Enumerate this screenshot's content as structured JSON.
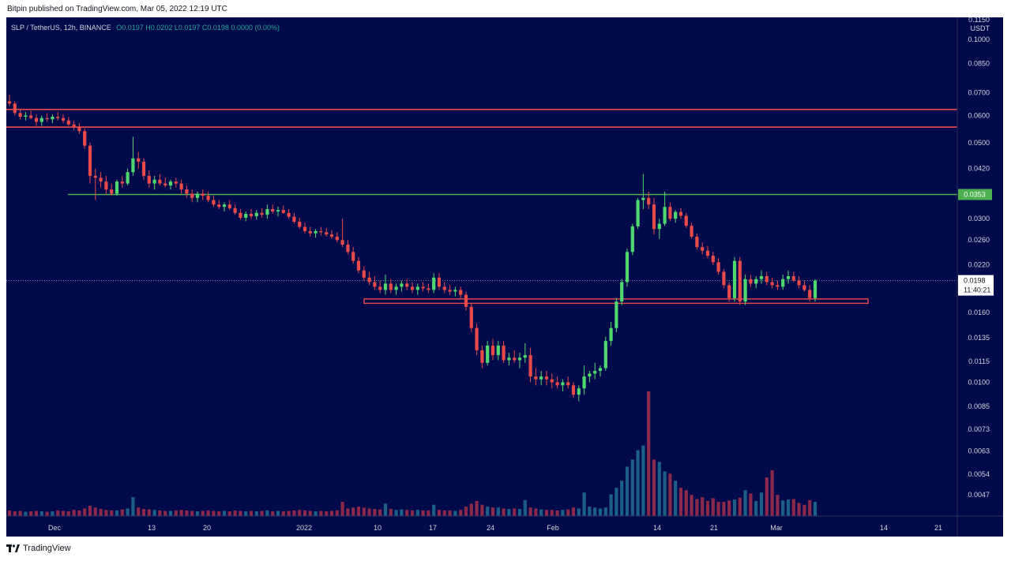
{
  "header": {
    "published_text": "Bitpin published on TradingView.com, Mar 05, 2022 12:19 UTC"
  },
  "legend": {
    "symbol": "SLP / TetherUS, 12h, BINANCE",
    "open": "O0.0197",
    "high": "H0.0202",
    "low": "L0.0197",
    "close": "C0.0198",
    "change": "0.0000 (0.00%)"
  },
  "footer": {
    "brand": "TradingView",
    "logo_icon": "tradingview-logo-icon"
  },
  "colors": {
    "background": "#000a4a",
    "bull": "#4fd870",
    "bear": "#e84a4a",
    "volume_bull": "#1c5f86",
    "volume_bear": "#8a2a4a",
    "resistance": "#e84a4a",
    "support_line": "#4caf50",
    "text": "#d1d4dc"
  },
  "chart_data": {
    "type": "candlestick",
    "price_axis": {
      "currency": "USDT",
      "scale": "log",
      "ticks": [
        "0.1150",
        "0.1000",
        "0.0850",
        "0.0700",
        "0.0600",
        "0.0500",
        "0.0420",
        "0.0300",
        "0.0260",
        "0.0220",
        "0.0160",
        "0.0135",
        "0.0115",
        "0.0100",
        "0.0085",
        "0.0073",
        "0.0063",
        "0.0054",
        "0.0047"
      ]
    },
    "time_axis": {
      "labels": [
        "Dec",
        "13",
        "20",
        "2022",
        "10",
        "17",
        "24",
        "Feb",
        "14",
        "21",
        "Mar",
        "14",
        "21"
      ]
    },
    "current_price": "0.0198",
    "countdown": "11:40:21",
    "marked_level": "0.0353",
    "horizontal_lines": [
      {
        "price": 0.0625,
        "color": "red"
      },
      {
        "price": 0.0555,
        "color": "red"
      },
      {
        "price": 0.0353,
        "color": "green"
      }
    ],
    "support_zone": {
      "from": 0.017,
      "to": 0.0175,
      "color": "red"
    },
    "ohlc": [
      [
        0.066,
        0.069,
        0.064,
        0.065
      ],
      [
        0.065,
        0.066,
        0.06,
        0.061
      ],
      [
        0.061,
        0.0625,
        0.0585,
        0.0595
      ],
      [
        0.0595,
        0.0615,
        0.058,
        0.06
      ],
      [
        0.06,
        0.062,
        0.0585,
        0.059
      ],
      [
        0.059,
        0.0605,
        0.056,
        0.0575
      ],
      [
        0.0575,
        0.06,
        0.056,
        0.059
      ],
      [
        0.059,
        0.061,
        0.0575,
        0.0585
      ],
      [
        0.0585,
        0.0605,
        0.057,
        0.0595
      ],
      [
        0.0595,
        0.0615,
        0.058,
        0.059
      ],
      [
        0.059,
        0.0605,
        0.057,
        0.058
      ],
      [
        0.058,
        0.0595,
        0.056,
        0.0565
      ],
      [
        0.0565,
        0.058,
        0.0545,
        0.0555
      ],
      [
        0.0555,
        0.057,
        0.053,
        0.054
      ],
      [
        0.054,
        0.055,
        0.048,
        0.049
      ],
      [
        0.049,
        0.05,
        0.038,
        0.04
      ],
      [
        0.04,
        0.042,
        0.034,
        0.0395
      ],
      [
        0.0395,
        0.041,
        0.037,
        0.0385
      ],
      [
        0.0385,
        0.04,
        0.0355,
        0.0365
      ],
      [
        0.0365,
        0.038,
        0.035,
        0.0355
      ],
      [
        0.0355,
        0.039,
        0.035,
        0.0385
      ],
      [
        0.0385,
        0.04,
        0.037,
        0.038
      ],
      [
        0.038,
        0.042,
        0.0375,
        0.041
      ],
      [
        0.041,
        0.052,
        0.04,
        0.045
      ],
      [
        0.045,
        0.047,
        0.042,
        0.044
      ],
      [
        0.044,
        0.045,
        0.039,
        0.04
      ],
      [
        0.04,
        0.0415,
        0.037,
        0.038
      ],
      [
        0.038,
        0.04,
        0.0365,
        0.039
      ],
      [
        0.039,
        0.0405,
        0.0375,
        0.038
      ],
      [
        0.038,
        0.0395,
        0.037,
        0.0375
      ],
      [
        0.0375,
        0.039,
        0.0365,
        0.0385
      ],
      [
        0.0385,
        0.0395,
        0.037,
        0.038
      ],
      [
        0.038,
        0.039,
        0.0355,
        0.0365
      ],
      [
        0.0365,
        0.0375,
        0.0345,
        0.0355
      ],
      [
        0.0355,
        0.0365,
        0.0335,
        0.0345
      ],
      [
        0.0345,
        0.036,
        0.0335,
        0.0355
      ],
      [
        0.0355,
        0.0365,
        0.034,
        0.035
      ],
      [
        0.035,
        0.036,
        0.0335,
        0.034
      ],
      [
        0.034,
        0.035,
        0.0325,
        0.033
      ],
      [
        0.033,
        0.034,
        0.032,
        0.0325
      ],
      [
        0.0325,
        0.0335,
        0.0315,
        0.033
      ],
      [
        0.033,
        0.034,
        0.0318,
        0.0322
      ],
      [
        0.0322,
        0.033,
        0.0308,
        0.0312
      ],
      [
        0.0312,
        0.032,
        0.0298,
        0.0302
      ],
      [
        0.0302,
        0.0315,
        0.0295,
        0.031
      ],
      [
        0.031,
        0.032,
        0.03,
        0.0305
      ],
      [
        0.0305,
        0.0318,
        0.0298,
        0.0312
      ],
      [
        0.0312,
        0.0322,
        0.0302,
        0.0308
      ],
      [
        0.0308,
        0.033,
        0.03,
        0.032
      ],
      [
        0.032,
        0.033,
        0.031,
        0.0315
      ],
      [
        0.0315,
        0.0325,
        0.0305,
        0.0318
      ],
      [
        0.0318,
        0.0328,
        0.031,
        0.0312
      ],
      [
        0.0312,
        0.032,
        0.03,
        0.0304
      ],
      [
        0.0304,
        0.0312,
        0.029,
        0.0294
      ],
      [
        0.0294,
        0.0302,
        0.028,
        0.0284
      ],
      [
        0.0284,
        0.0292,
        0.0272,
        0.0276
      ],
      [
        0.0276,
        0.0284,
        0.0266,
        0.0272
      ],
      [
        0.0272,
        0.028,
        0.0264,
        0.0276
      ],
      [
        0.0276,
        0.0284,
        0.0268,
        0.0274
      ],
      [
        0.0274,
        0.0282,
        0.0266,
        0.027
      ],
      [
        0.027,
        0.0278,
        0.0262,
        0.0266
      ],
      [
        0.0266,
        0.0274,
        0.0256,
        0.026
      ],
      [
        0.026,
        0.03,
        0.0248,
        0.0252
      ],
      [
        0.0252,
        0.026,
        0.0236,
        0.024
      ],
      [
        0.024,
        0.0248,
        0.0222,
        0.0226
      ],
      [
        0.0226,
        0.0232,
        0.0208,
        0.0212
      ],
      [
        0.0212,
        0.0218,
        0.0198,
        0.0202
      ],
      [
        0.0202,
        0.021,
        0.0192,
        0.0196
      ],
      [
        0.0196,
        0.0204,
        0.0186,
        0.019
      ],
      [
        0.019,
        0.0198,
        0.0182,
        0.0186
      ],
      [
        0.0186,
        0.0206,
        0.018,
        0.0194
      ],
      [
        0.0194,
        0.02,
        0.0182,
        0.0186
      ],
      [
        0.0186,
        0.0194,
        0.018,
        0.019
      ],
      [
        0.019,
        0.0198,
        0.0184,
        0.0194
      ],
      [
        0.0194,
        0.02,
        0.0186,
        0.019
      ],
      [
        0.019,
        0.0196,
        0.0182,
        0.0186
      ],
      [
        0.0186,
        0.0194,
        0.018,
        0.019
      ],
      [
        0.019,
        0.0196,
        0.0184,
        0.0188
      ],
      [
        0.0188,
        0.0194,
        0.0182,
        0.0186
      ],
      [
        0.0186,
        0.0208,
        0.0182,
        0.0202
      ],
      [
        0.0202,
        0.0208,
        0.0186,
        0.019
      ],
      [
        0.019,
        0.0196,
        0.0182,
        0.0186
      ],
      [
        0.0186,
        0.0192,
        0.018,
        0.0184
      ],
      [
        0.0184,
        0.019,
        0.0178,
        0.0186
      ],
      [
        0.0186,
        0.019,
        0.0176,
        0.018
      ],
      [
        0.018,
        0.0184,
        0.0162,
        0.0166
      ],
      [
        0.0166,
        0.017,
        0.014,
        0.0144
      ],
      [
        0.0144,
        0.0148,
        0.012,
        0.0124
      ],
      [
        0.0124,
        0.0128,
        0.011,
        0.0114
      ],
      [
        0.0114,
        0.0132,
        0.0112,
        0.0128
      ],
      [
        0.0128,
        0.0134,
        0.0116,
        0.012
      ],
      [
        0.012,
        0.0132,
        0.0116,
        0.0128
      ],
      [
        0.0128,
        0.0132,
        0.0114,
        0.0116
      ],
      [
        0.0116,
        0.0122,
        0.0112,
        0.0118
      ],
      [
        0.0118,
        0.0124,
        0.0114,
        0.0116
      ],
      [
        0.0116,
        0.0122,
        0.011,
        0.0118
      ],
      [
        0.0118,
        0.013,
        0.0114,
        0.012
      ],
      [
        0.012,
        0.0126,
        0.01,
        0.0104
      ],
      [
        0.0104,
        0.011,
        0.0098,
        0.0102
      ],
      [
        0.0102,
        0.0108,
        0.0098,
        0.0104
      ],
      [
        0.0104,
        0.0108,
        0.0098,
        0.0102
      ],
      [
        0.0102,
        0.0106,
        0.0096,
        0.01
      ],
      [
        0.01,
        0.0104,
        0.0096,
        0.0098
      ],
      [
        0.0098,
        0.0102,
        0.0094,
        0.01
      ],
      [
        0.01,
        0.0104,
        0.0096,
        0.0098
      ],
      [
        0.0098,
        0.01,
        0.009,
        0.0092
      ],
      [
        0.0092,
        0.0098,
        0.0088,
        0.0096
      ],
      [
        0.0096,
        0.0112,
        0.0092,
        0.0104
      ],
      [
        0.0104,
        0.0108,
        0.01,
        0.0106
      ],
      [
        0.0106,
        0.0114,
        0.0102,
        0.0108
      ],
      [
        0.0108,
        0.0112,
        0.0104,
        0.011
      ],
      [
        0.011,
        0.0136,
        0.0108,
        0.0132
      ],
      [
        0.0132,
        0.015,
        0.0128,
        0.0144
      ],
      [
        0.0144,
        0.0176,
        0.014,
        0.0172
      ],
      [
        0.0172,
        0.02,
        0.0168,
        0.0196
      ],
      [
        0.0196,
        0.0245,
        0.019,
        0.024
      ],
      [
        0.024,
        0.029,
        0.0235,
        0.0285
      ],
      [
        0.0285,
        0.0345,
        0.028,
        0.034
      ],
      [
        0.034,
        0.0405,
        0.032,
        0.0345
      ],
      [
        0.0345,
        0.036,
        0.032,
        0.033
      ],
      [
        0.033,
        0.0345,
        0.027,
        0.028
      ],
      [
        0.028,
        0.03,
        0.0262,
        0.029
      ],
      [
        0.029,
        0.036,
        0.0286,
        0.0325
      ],
      [
        0.0325,
        0.0335,
        0.0295,
        0.03
      ],
      [
        0.03,
        0.0318,
        0.0292,
        0.0314
      ],
      [
        0.0314,
        0.0322,
        0.03,
        0.0306
      ],
      [
        0.0306,
        0.0312,
        0.0282,
        0.0286
      ],
      [
        0.0286,
        0.0292,
        0.0262,
        0.0266
      ],
      [
        0.0266,
        0.0272,
        0.0244,
        0.0248
      ],
      [
        0.0248,
        0.0256,
        0.0236,
        0.0242
      ],
      [
        0.0242,
        0.025,
        0.023,
        0.0234
      ],
      [
        0.0234,
        0.024,
        0.022,
        0.0224
      ],
      [
        0.0224,
        0.023,
        0.0206,
        0.021
      ],
      [
        0.021,
        0.0214,
        0.0188,
        0.0192
      ],
      [
        0.0192,
        0.0196,
        0.0172,
        0.0176
      ],
      [
        0.0176,
        0.0232,
        0.0172,
        0.0226
      ],
      [
        0.0226,
        0.0232,
        0.0168,
        0.0172
      ],
      [
        0.0172,
        0.0206,
        0.0168,
        0.02
      ],
      [
        0.02,
        0.0206,
        0.019,
        0.0194
      ],
      [
        0.0194,
        0.0204,
        0.0188,
        0.02
      ],
      [
        0.02,
        0.0212,
        0.0194,
        0.0204
      ],
      [
        0.0204,
        0.021,
        0.0192,
        0.0196
      ],
      [
        0.0196,
        0.0202,
        0.0188,
        0.0192
      ],
      [
        0.0192,
        0.0198,
        0.0186,
        0.019
      ],
      [
        0.019,
        0.0206,
        0.0186,
        0.02
      ],
      [
        0.02,
        0.0212,
        0.0194,
        0.0204
      ],
      [
        0.0204,
        0.021,
        0.0196,
        0.0198
      ],
      [
        0.0198,
        0.0204,
        0.0188,
        0.0192
      ],
      [
        0.0192,
        0.0198,
        0.0184,
        0.0186
      ],
      [
        0.0186,
        0.0192,
        0.0172,
        0.0176
      ],
      [
        0.0176,
        0.02,
        0.0172,
        0.0198
      ]
    ],
    "volume": [
      1.2,
      1.0,
      1.1,
      0.9,
      1.0,
      1.1,
      1.0,
      0.9,
      1.0,
      1.2,
      1.1,
      1.0,
      1.3,
      1.2,
      1.6,
      2.2,
      1.8,
      1.5,
      1.3,
      1.2,
      1.2,
      1.4,
      1.6,
      4.0,
      1.8,
      1.5,
      1.4,
      1.3,
      1.2,
      1.1,
      1.1,
      1.2,
      1.3,
      1.2,
      1.1,
      1.0,
      1.1,
      1.2,
      1.1,
      1.0,
      1.1,
      1.0,
      1.2,
      1.1,
      1.0,
      1.1,
      1.0,
      1.1,
      1.2,
      1.0,
      1.1,
      1.0,
      1.1,
      1.2,
      1.3,
      1.2,
      1.1,
      1.0,
      1.1,
      1.0,
      1.1,
      1.2,
      3.0,
      1.6,
      1.8,
      2.0,
      1.8,
      1.6,
      1.5,
      1.4,
      2.6,
      1.5,
      1.3,
      1.4,
      1.3,
      1.2,
      1.3,
      1.2,
      1.2,
      2.4,
      1.3,
      1.2,
      1.2,
      1.1,
      1.3,
      2.0,
      2.6,
      3.2,
      2.4,
      2.0,
      1.8,
      1.8,
      1.6,
      1.5,
      1.6,
      1.5,
      3.4,
      1.8,
      1.6,
      1.4,
      1.3,
      1.3,
      1.2,
      1.3,
      1.4,
      1.8,
      1.6,
      5.0,
      2.0,
      1.8,
      1.6,
      1.8,
      4.6,
      6.0,
      7.5,
      10.5,
      12.0,
      14.0,
      15.0,
      26.5,
      12.0,
      11.5,
      9.5,
      9.0,
      7.5,
      6.0,
      5.5,
      4.5,
      3.6,
      4.0,
      3.2,
      3.8,
      3.0,
      3.0,
      3.3,
      3.5,
      3.9,
      5.5,
      4.8,
      3.2,
      5.0,
      8.2,
      9.7,
      4.5,
      3.3,
      3.5,
      3.6,
      2.8,
      2.4,
      3.4,
      3.0,
      3.2,
      2.5,
      2.7,
      2.2,
      2.0,
      5.0
    ]
  }
}
